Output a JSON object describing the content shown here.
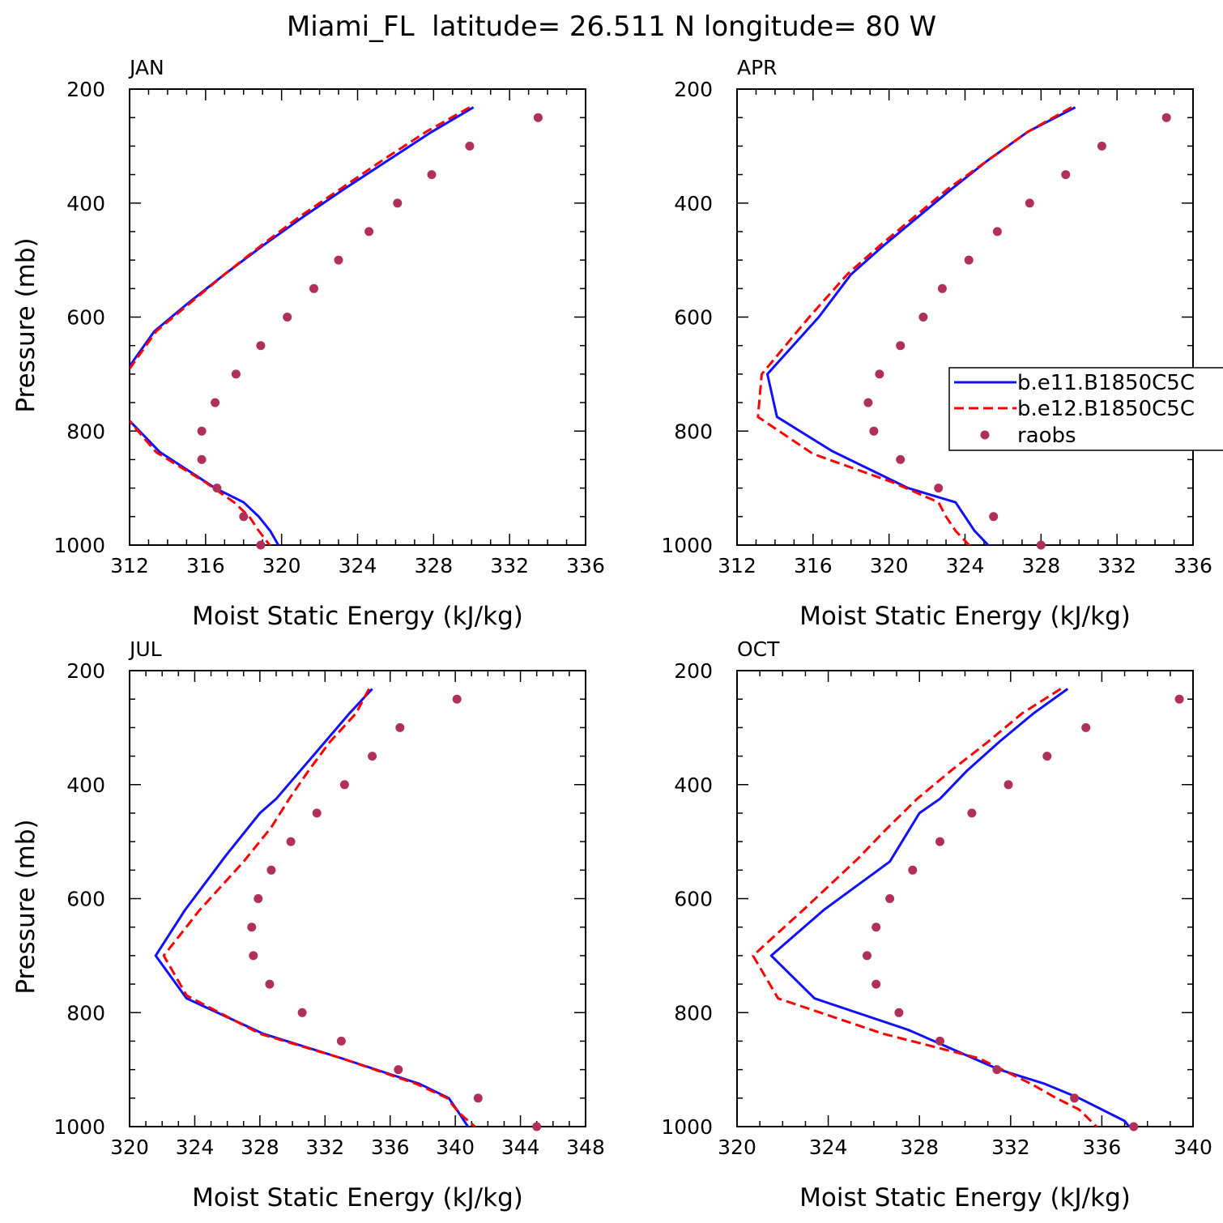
{
  "page_title": "Miami_FL  latitude= 26.511 N longitude= 80 W",
  "colors": {
    "series_1": "#1010ff",
    "series_2": "#ff0000",
    "raobs": "#b0305a"
  },
  "legend": {
    "items": [
      {
        "label": "b.e11.B1850C5C",
        "style": "solid"
      },
      {
        "label": "b.e12.B1850C5C",
        "style": "dashed"
      },
      {
        "label": "raobs",
        "style": "dot"
      }
    ]
  },
  "chart_data": [
    {
      "type": "line",
      "label": "JAN",
      "xlabel": "Moist Static Energy (kJ/kg)",
      "ylabel": "Pressure (mb)",
      "xlim": [
        312,
        336
      ],
      "ylim": [
        200,
        1000
      ],
      "xticks": [
        312,
        316,
        320,
        324,
        328,
        332,
        336
      ],
      "yticks": [
        200,
        400,
        600,
        800,
        1000
      ],
      "series": [
        {
          "name": "b.e11.B1850C5C",
          "points": [
            [
              330.1,
              232
            ],
            [
              327.9,
              275
            ],
            [
              325.6,
              325
            ],
            [
              323.3,
              375
            ],
            [
              321.1,
              425
            ],
            [
              319.0,
              475
            ],
            [
              317.0,
              525
            ],
            [
              315.1,
              575
            ],
            [
              313.3,
              625
            ],
            [
              311.7,
              700
            ],
            [
              311.8,
              775
            ],
            [
              313.6,
              837
            ],
            [
              316.5,
              900
            ],
            [
              318.0,
              925
            ],
            [
              318.8,
              950
            ],
            [
              319.4,
              975
            ],
            [
              320.0,
              1010
            ]
          ]
        },
        {
          "name": "b.e12.B1850C5C",
          "points": [
            [
              329.9,
              232
            ],
            [
              327.6,
              275
            ],
            [
              325.3,
              325
            ],
            [
              323.1,
              375
            ],
            [
              320.9,
              425
            ],
            [
              318.9,
              475
            ],
            [
              317.0,
              525
            ],
            [
              315.2,
              575
            ],
            [
              313.4,
              625
            ],
            [
              311.8,
              700
            ],
            [
              311.8,
              775
            ],
            [
              313.4,
              837
            ],
            [
              316.0,
              890
            ],
            [
              317.5,
              925
            ],
            [
              318.3,
              950
            ],
            [
              318.8,
              975
            ],
            [
              319.6,
              1010
            ]
          ]
        },
        {
          "name": "raobs",
          "points": [
            [
              333.5,
              250
            ],
            [
              329.9,
              300
            ],
            [
              327.9,
              350
            ],
            [
              326.1,
              400
            ],
            [
              324.6,
              450
            ],
            [
              323.0,
              500
            ],
            [
              321.7,
              550
            ],
            [
              320.3,
              600
            ],
            [
              318.9,
              650
            ],
            [
              317.6,
              700
            ],
            [
              316.5,
              750
            ],
            [
              315.8,
              800
            ],
            [
              315.8,
              850
            ],
            [
              316.6,
              900
            ],
            [
              318.0,
              950
            ],
            [
              318.9,
              1000
            ]
          ]
        }
      ]
    },
    {
      "type": "line",
      "label": "APR",
      "xlabel": "Moist Static Energy (kJ/kg)",
      "ylabel": "",
      "xlim": [
        312,
        336
      ],
      "ylim": [
        200,
        1000
      ],
      "xticks": [
        312,
        316,
        320,
        324,
        328,
        332,
        336
      ],
      "yticks": [
        200,
        400,
        600,
        800,
        1000
      ],
      "series": [
        {
          "name": "b.e11.B1850C5C",
          "points": [
            [
              329.8,
              232
            ],
            [
              327.3,
              275
            ],
            [
              325.2,
              325
            ],
            [
              323.3,
              375
            ],
            [
              321.5,
              425
            ],
            [
              319.7,
              475
            ],
            [
              318.0,
              525
            ],
            [
              316.3,
              600
            ],
            [
              313.6,
              700
            ],
            [
              314.1,
              775
            ],
            [
              317.0,
              835
            ],
            [
              321.0,
              900
            ],
            [
              323.5,
              925
            ],
            [
              324.0,
              950
            ],
            [
              324.5,
              975
            ],
            [
              325.5,
              1010
            ]
          ]
        },
        {
          "name": "b.e12.B1850C5C",
          "points": [
            [
              329.6,
              232
            ],
            [
              327.3,
              275
            ],
            [
              325.2,
              325
            ],
            [
              323.1,
              375
            ],
            [
              321.3,
              425
            ],
            [
              319.5,
              475
            ],
            [
              317.8,
              525
            ],
            [
              315.8,
              600
            ],
            [
              313.3,
              700
            ],
            [
              313.1,
              775
            ],
            [
              316.0,
              840
            ],
            [
              320.2,
              890
            ],
            [
              322.6,
              925
            ],
            [
              323.0,
              950
            ],
            [
              323.5,
              975
            ],
            [
              324.5,
              1010
            ]
          ]
        },
        {
          "name": "raobs",
          "points": [
            [
              334.6,
              250
            ],
            [
              331.2,
              300
            ],
            [
              329.3,
              350
            ],
            [
              327.4,
              400
            ],
            [
              325.7,
              450
            ],
            [
              324.2,
              500
            ],
            [
              322.8,
              550
            ],
            [
              321.8,
              600
            ],
            [
              320.6,
              650
            ],
            [
              319.5,
              700
            ],
            [
              318.9,
              750
            ],
            [
              319.2,
              800
            ],
            [
              320.6,
              850
            ],
            [
              322.6,
              900
            ],
            [
              325.5,
              950
            ],
            [
              328.0,
              1000
            ]
          ]
        }
      ]
    },
    {
      "type": "line",
      "label": "JUL",
      "xlabel": "Moist Static Energy (kJ/kg)",
      "ylabel": "Pressure (mb)",
      "xlim": [
        320,
        348
      ],
      "ylim": [
        200,
        1000
      ],
      "xticks": [
        320,
        324,
        328,
        332,
        336,
        340,
        344,
        348
      ],
      "yticks": [
        200,
        400,
        600,
        800,
        1000
      ],
      "series": [
        {
          "name": "b.e11.B1850C5C",
          "points": [
            [
              334.9,
              232
            ],
            [
              333.5,
              275
            ],
            [
              332.0,
              325
            ],
            [
              330.5,
              375
            ],
            [
              329.0,
              425
            ],
            [
              328.0,
              450
            ],
            [
              325.9,
              525
            ],
            [
              323.4,
              620
            ],
            [
              321.6,
              700
            ],
            [
              323.5,
              775
            ],
            [
              328.2,
              837
            ],
            [
              333.0,
              880
            ],
            [
              337.8,
              925
            ],
            [
              339.6,
              950
            ],
            [
              340.2,
              975
            ],
            [
              341.0,
              1010
            ]
          ]
        },
        {
          "name": "b.e12.B1850C5C",
          "points": [
            [
              334.7,
              232
            ],
            [
              333.9,
              275
            ],
            [
              332.3,
              325
            ],
            [
              331.0,
              375
            ],
            [
              329.8,
              425
            ],
            [
              328.7,
              475
            ],
            [
              327.0,
              535
            ],
            [
              324.3,
              620
            ],
            [
              322.1,
              700
            ],
            [
              323.5,
              770
            ],
            [
              328.0,
              837
            ],
            [
              333.0,
              880
            ],
            [
              337.6,
              925
            ],
            [
              339.5,
              950
            ],
            [
              340.2,
              975
            ],
            [
              341.6,
              1010
            ]
          ]
        },
        {
          "name": "raobs",
          "points": [
            [
              340.1,
              250
            ],
            [
              336.6,
              300
            ],
            [
              334.9,
              350
            ],
            [
              333.2,
              400
            ],
            [
              331.5,
              450
            ],
            [
              329.9,
              500
            ],
            [
              328.7,
              550
            ],
            [
              327.9,
              600
            ],
            [
              327.5,
              650
            ],
            [
              327.6,
              700
            ],
            [
              328.6,
              750
            ],
            [
              330.6,
              800
            ],
            [
              333.0,
              850
            ],
            [
              336.5,
              900
            ],
            [
              341.4,
              950
            ],
            [
              345.0,
              1000
            ]
          ]
        }
      ]
    },
    {
      "type": "line",
      "label": "OCT",
      "xlabel": "Moist Static Energy (kJ/kg)",
      "ylabel": "",
      "xlim": [
        320,
        340
      ],
      "ylim": [
        200,
        1000
      ],
      "xticks": [
        320,
        324,
        328,
        332,
        336,
        340
      ],
      "yticks": [
        200,
        400,
        600,
        800,
        1000
      ],
      "series": [
        {
          "name": "b.e11.B1850C5C",
          "points": [
            [
              334.5,
              232
            ],
            [
              333.0,
              275
            ],
            [
              331.5,
              325
            ],
            [
              330.1,
              375
            ],
            [
              328.9,
              425
            ],
            [
              328.0,
              450
            ],
            [
              326.7,
              535
            ],
            [
              323.8,
              620
            ],
            [
              321.5,
              700
            ],
            [
              323.4,
              775
            ],
            [
              327.5,
              830
            ],
            [
              331.5,
              900
            ],
            [
              333.5,
              925
            ],
            [
              335.0,
              950
            ],
            [
              336.0,
              970
            ],
            [
              337.0,
              990
            ],
            [
              337.3,
              1005
            ]
          ]
        },
        {
          "name": "b.e12.B1850C5C",
          "points": [
            [
              334.2,
              232
            ],
            [
              332.5,
              275
            ],
            [
              331.0,
              325
            ],
            [
              329.4,
              375
            ],
            [
              327.9,
              425
            ],
            [
              326.5,
              480
            ],
            [
              325.3,
              530
            ],
            [
              322.9,
              620
            ],
            [
              320.7,
              700
            ],
            [
              321.8,
              775
            ],
            [
              326.4,
              837
            ],
            [
              330.6,
              880
            ],
            [
              332.9,
              925
            ],
            [
              334.0,
              950
            ],
            [
              335.0,
              970
            ],
            [
              335.9,
              1005
            ]
          ]
        },
        {
          "name": "raobs",
          "points": [
            [
              339.4,
              250
            ],
            [
              335.3,
              300
            ],
            [
              333.6,
              350
            ],
            [
              331.9,
              400
            ],
            [
              330.3,
              450
            ],
            [
              328.9,
              500
            ],
            [
              327.7,
              550
            ],
            [
              326.7,
              600
            ],
            [
              326.1,
              650
            ],
            [
              325.7,
              700
            ],
            [
              326.1,
              750
            ],
            [
              327.1,
              800
            ],
            [
              328.9,
              850
            ],
            [
              331.4,
              900
            ],
            [
              334.8,
              950
            ],
            [
              337.4,
              1000
            ]
          ]
        }
      ]
    }
  ]
}
